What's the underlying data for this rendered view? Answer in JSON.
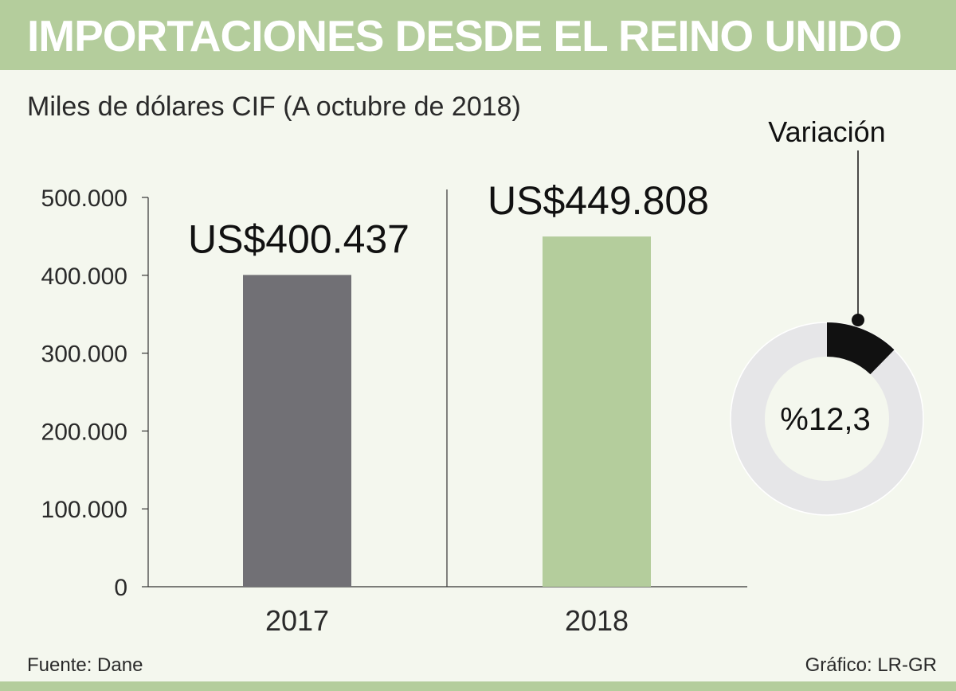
{
  "header": {
    "title": "IMPORTACIONES DESDE EL REINO UNIDO",
    "subtitle": "Miles de dólares CIF (A octubre de 2018)"
  },
  "footer": {
    "source": "Fuente: Dane",
    "credit": "Gráfico: LR-GR"
  },
  "colors": {
    "band": "#b4cd9c",
    "background": "#f4f7ee",
    "bar_2017": "#717075",
    "bar_2018": "#b4cd9c",
    "donut_track": "#e6e6e8",
    "donut_fill": "#111111"
  },
  "chart_data": {
    "type": "bar",
    "categories": [
      "2017",
      "2018"
    ],
    "values": [
      400437,
      449808
    ],
    "data_labels": [
      "US$400.437",
      "US$449.808"
    ],
    "y_ticks": [
      0,
      100000,
      200000,
      300000,
      400000,
      500000
    ],
    "y_tick_labels": [
      "0",
      "100.000",
      "200.000",
      "300.000",
      "400.000",
      "500.000"
    ],
    "ylim": [
      0,
      500000
    ],
    "xlabel": "",
    "ylabel": "",
    "grid": false,
    "variation": {
      "label": "Variación",
      "value_label": "%12,3",
      "percent": 12.3
    }
  }
}
